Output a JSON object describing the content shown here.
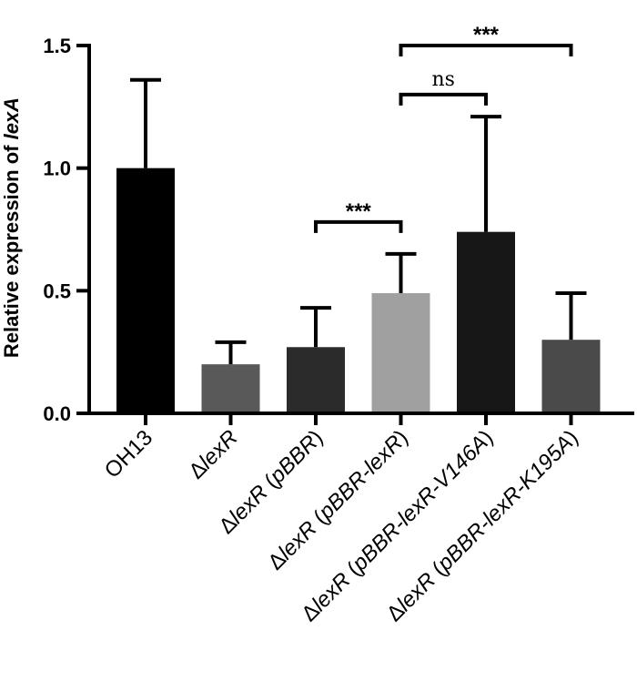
{
  "chart_data": {
    "type": "bar",
    "title": "",
    "xlabel": "",
    "ylabel_parts": [
      {
        "text": "Relative expression of ",
        "italic": false
      },
      {
        "text": "lexA",
        "italic": true
      }
    ],
    "ylim": [
      0,
      1.5
    ],
    "yticks": [
      "0.0",
      "0.5",
      "1.0",
      "1.5"
    ],
    "categories": [
      [
        {
          "text": "OH13",
          "italic": false
        }
      ],
      [
        {
          "text": "Δ",
          "italic": false
        },
        {
          "text": "lexR",
          "italic": true
        }
      ],
      [
        {
          "text": "Δ",
          "italic": false
        },
        {
          "text": "lexR",
          "italic": true
        },
        {
          "text": " (",
          "italic": false
        },
        {
          "text": "pBBR",
          "italic": true
        },
        {
          "text": ")",
          "italic": false
        }
      ],
      [
        {
          "text": "Δ",
          "italic": false
        },
        {
          "text": "lexR",
          "italic": true
        },
        {
          "text": " (",
          "italic": false
        },
        {
          "text": "pBBR-lexR",
          "italic": true
        },
        {
          "text": ")",
          "italic": false
        }
      ],
      [
        {
          "text": "Δ",
          "italic": false
        },
        {
          "text": "lexR",
          "italic": true
        },
        {
          "text": " (",
          "italic": false
        },
        {
          "text": "pBBR-lexR-V146A",
          "italic": true
        },
        {
          "text": ")",
          "italic": false
        }
      ],
      [
        {
          "text": "Δ",
          "italic": false
        },
        {
          "text": "lexR",
          "italic": true
        },
        {
          "text": " (",
          "italic": false
        },
        {
          "text": "pBBR-lexR-K195A",
          "italic": true
        },
        {
          "text": ")",
          "italic": false
        }
      ]
    ],
    "values": [
      1.0,
      0.2,
      0.27,
      0.49,
      0.74,
      0.3
    ],
    "errors": [
      0.36,
      0.09,
      0.16,
      0.16,
      0.47,
      0.19
    ],
    "colors": [
      "#000000",
      "#595959",
      "#2b2b2b",
      "#a0a0a0",
      "#171717",
      "#4a4a4a"
    ],
    "significance": [
      {
        "from": 2,
        "to": 3,
        "y": 0.78,
        "label": "***"
      },
      {
        "from": 3,
        "to": 4,
        "y": 1.3,
        "label": "ns"
      },
      {
        "from": 3,
        "to": 5,
        "y": 1.5,
        "label": "***"
      }
    ]
  }
}
